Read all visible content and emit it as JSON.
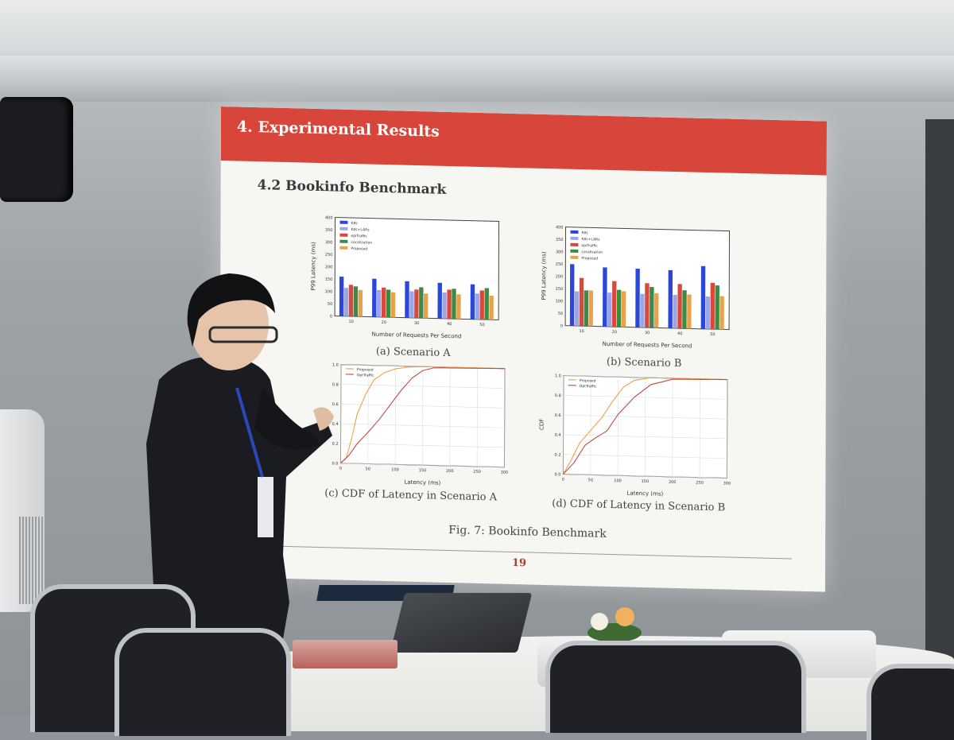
{
  "slide": {
    "header": "4. Experimental Results",
    "section": "4.2 Bookinfo Benchmark",
    "figure_caption": "Fig. 7: Bookinfo Benchmark",
    "page_number": "19",
    "panels": {
      "a": "(a) Scenario A",
      "b": "(b) Scenario B",
      "c": "(c) CDF of Latency in Scenario A",
      "d": "(d) CDF of Latency in Scenario B"
    }
  },
  "chart_data": [
    {
      "type": "bar",
      "xlabel": "Number of Requests Per Second",
      "ylabel": "P99 Latency (ms)",
      "categories": [
        "10",
        "20",
        "30",
        "40",
        "50"
      ],
      "ylim": [
        0,
        400
      ],
      "yticks": [
        "0",
        "50",
        "100",
        "150",
        "200",
        "250",
        "300",
        "350",
        "400"
      ],
      "legend_position": "top-left",
      "series": [
        {
          "name": "K8s",
          "color": "#2b46d9",
          "values": [
            160,
            155,
            148,
            145,
            142
          ]
        },
        {
          "name": "K8s+LARs",
          "color": "#9aa6e8",
          "values": [
            115,
            110,
            108,
            106,
            105
          ]
        },
        {
          "name": "epiTraffic",
          "color": "#d9483b",
          "values": [
            128,
            120,
            115,
            118,
            118
          ]
        },
        {
          "name": "Localization",
          "color": "#3e8a43",
          "values": [
            122,
            112,
            125,
            122,
            128
          ]
        },
        {
          "name": "Proposed",
          "color": "#e9a24a",
          "values": [
            108,
            102,
            100,
            100,
            98
          ]
        }
      ]
    },
    {
      "type": "bar",
      "xlabel": "Number of Requests Per Second",
      "ylabel": "P99 Latency (ms)",
      "categories": [
        "10",
        "20",
        "30",
        "40",
        "50"
      ],
      "ylim": [
        0,
        400
      ],
      "yticks": [
        "0",
        "50",
        "100",
        "150",
        "200",
        "250",
        "300",
        "350",
        "400"
      ],
      "legend_position": "top-left",
      "series": [
        {
          "name": "K8s",
          "color": "#2b46d9",
          "values": [
            250,
            240,
            238,
            235,
            255
          ]
        },
        {
          "name": "K8s+LARs",
          "color": "#9aa6e8",
          "values": [
            140,
            138,
            136,
            135,
            132
          ]
        },
        {
          "name": "epiTraffic",
          "color": "#d9483b",
          "values": [
            195,
            185,
            180,
            180,
            188
          ]
        },
        {
          "name": "Localization",
          "color": "#3e8a43",
          "values": [
            145,
            150,
            165,
            155,
            178
          ]
        },
        {
          "name": "Proposed",
          "color": "#e9a24a",
          "values": [
            145,
            145,
            140,
            138,
            135
          ]
        }
      ]
    },
    {
      "type": "line",
      "xlabel": "Latency (ms)",
      "ylabel": "",
      "xlim": [
        0,
        300
      ],
      "ylim": [
        0,
        1.0
      ],
      "xticks": [
        "0",
        "50",
        "100",
        "150",
        "200",
        "250",
        "300"
      ],
      "yticks": [
        "0.0",
        "0.2",
        "0.4",
        "0.6",
        "0.8",
        "1.0"
      ],
      "legend_position": "top-left",
      "series": [
        {
          "name": "Proposed",
          "color": "#e9a24a",
          "x": [
            0,
            10,
            20,
            30,
            45,
            60,
            80,
            100,
            120,
            150,
            300
          ],
          "y": [
            0,
            0.05,
            0.25,
            0.5,
            0.7,
            0.85,
            0.93,
            0.97,
            0.99,
            1.0,
            1.0
          ]
        },
        {
          "name": "OptTraffic",
          "color": "#c04a44",
          "x": [
            0,
            15,
            30,
            50,
            70,
            90,
            110,
            130,
            150,
            170,
            300
          ],
          "y": [
            0,
            0.08,
            0.2,
            0.32,
            0.45,
            0.6,
            0.75,
            0.88,
            0.96,
            0.99,
            1.0
          ]
        }
      ]
    },
    {
      "type": "line",
      "xlabel": "Latency (ms)",
      "ylabel": "CDF",
      "xlim": [
        0,
        300
      ],
      "ylim": [
        0,
        1.0
      ],
      "xticks": [
        "0",
        "50",
        "100",
        "150",
        "200",
        "250",
        "300"
      ],
      "yticks": [
        "0.0",
        "0.2",
        "0.4",
        "0.6",
        "0.8",
        "1.0"
      ],
      "legend_position": "top-left",
      "series": [
        {
          "name": "Proposed",
          "color": "#e9a24a",
          "x": [
            0,
            15,
            30,
            50,
            70,
            90,
            110,
            130,
            160,
            300
          ],
          "y": [
            0,
            0.15,
            0.32,
            0.45,
            0.58,
            0.75,
            0.9,
            0.97,
            1.0,
            1.0
          ]
        },
        {
          "name": "OptTraffic",
          "color": "#c04a44",
          "x": [
            0,
            20,
            40,
            60,
            80,
            100,
            130,
            160,
            200,
            300
          ],
          "y": [
            0,
            0.12,
            0.3,
            0.38,
            0.45,
            0.62,
            0.8,
            0.93,
            0.99,
            1.0
          ]
        }
      ]
    }
  ]
}
